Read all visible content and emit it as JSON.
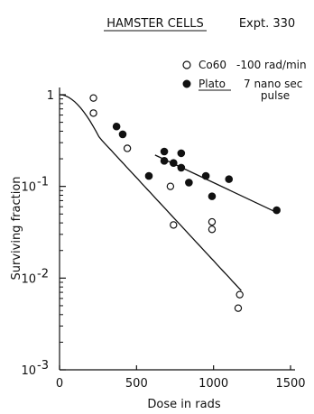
{
  "chart_data": {
    "type": "scatter",
    "title": "HAMSTER CELLS",
    "subtitle": "Expt. 330",
    "xlabel": "Dose in rads",
    "ylabel": "Surviving fraction",
    "xlim": [
      0,
      1500
    ],
    "ylim": [
      0.001,
      1
    ],
    "y_scale": "log",
    "x_ticks": [
      {
        "value": 0,
        "label": "0"
      },
      {
        "value": 500,
        "label": "500"
      },
      {
        "value": 1000,
        "label": "1000"
      },
      {
        "value": 1500,
        "label": "1500"
      }
    ],
    "y_ticks": [
      {
        "value": 1,
        "label": "1",
        "exp": ""
      },
      {
        "value": 0.1,
        "label": "10",
        "exp": "-1"
      },
      {
        "value": 0.01,
        "label": "10",
        "exp": "-2"
      },
      {
        "value": 0.001,
        "label": "10",
        "exp": "-3"
      }
    ],
    "grid": false,
    "legend_position": "top-right",
    "series": [
      {
        "name": "Co60 -100 rad/min",
        "name_parts": [
          "Co60",
          "-100 rad/min"
        ],
        "marker": "open-circle",
        "points": [
          {
            "x": 220,
            "y": 0.92
          },
          {
            "x": 220,
            "y": 0.63
          },
          {
            "x": 440,
            "y": 0.26
          },
          {
            "x": 720,
            "y": 0.1
          },
          {
            "x": 740,
            "y": 0.038
          },
          {
            "x": 990,
            "y": 0.041
          },
          {
            "x": 990,
            "y": 0.034
          },
          {
            "x": 1170,
            "y": 0.0066
          },
          {
            "x": 1160,
            "y": 0.0047
          }
        ],
        "fit_line": [
          {
            "x": 0,
            "y": 1.0
          },
          {
            "x": 1180,
            "y": 0.0073
          }
        ]
      },
      {
        "name": "Plato 7 nano sec pulse",
        "name_parts": [
          "Plato",
          "7 nano sec",
          "pulse"
        ],
        "marker": "filled-circle",
        "points": [
          {
            "x": 370,
            "y": 0.45
          },
          {
            "x": 410,
            "y": 0.37
          },
          {
            "x": 580,
            "y": 0.13
          },
          {
            "x": 680,
            "y": 0.24
          },
          {
            "x": 680,
            "y": 0.19
          },
          {
            "x": 740,
            "y": 0.18
          },
          {
            "x": 790,
            "y": 0.23
          },
          {
            "x": 790,
            "y": 0.16
          },
          {
            "x": 840,
            "y": 0.11
          },
          {
            "x": 950,
            "y": 0.13
          },
          {
            "x": 990,
            "y": 0.078
          },
          {
            "x": 1100,
            "y": 0.12
          },
          {
            "x": 1410,
            "y": 0.055
          }
        ],
        "fit_line": [
          {
            "x": 620,
            "y": 0.22
          },
          {
            "x": 1410,
            "y": 0.052
          }
        ]
      }
    ]
  }
}
